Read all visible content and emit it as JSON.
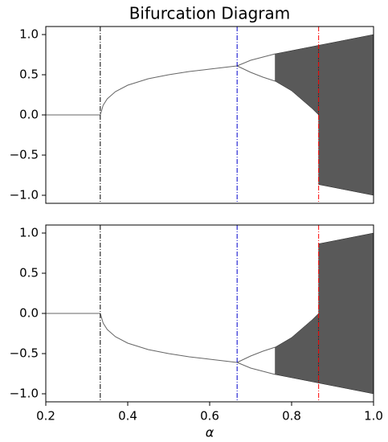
{
  "chart_data": [
    {
      "type": "line",
      "title": "Bifurcation Diagram",
      "xlim": [
        0.2,
        1.0
      ],
      "ylim": [
        -1.1,
        1.1
      ],
      "yticks": [
        {
          "value": -1.0,
          "label": "−1.0"
        },
        {
          "value": -0.5,
          "label": "−0.5"
        },
        {
          "value": 0.0,
          "label": "0.0"
        },
        {
          "value": 0.5,
          "label": "0.5"
        },
        {
          "value": 1.0,
          "label": "1.0"
        }
      ],
      "vlines": [
        {
          "x": 0.333,
          "color": "#000000"
        },
        {
          "x": 0.667,
          "color": "#0000cc"
        },
        {
          "x": 0.866,
          "color": "#ff0000"
        }
      ],
      "series": [
        {
          "color": "#666666",
          "x": [
            0.2,
            0.333,
            0.34,
            0.35,
            0.37,
            0.4,
            0.45,
            0.5,
            0.55,
            0.6,
            0.65,
            0.667
          ],
          "values": [
            0,
            0,
            0.12,
            0.2,
            0.29,
            0.37,
            0.45,
            0.5,
            0.54,
            0.57,
            0.6,
            0.61
          ]
        },
        {
          "color": "#666666",
          "x": [
            0.667,
            0.7,
            0.73,
            0.76
          ],
          "values": [
            0.61,
            0.68,
            0.72,
            0.76
          ]
        },
        {
          "color": "#666666",
          "x": [
            0.667,
            0.7,
            0.73,
            0.76
          ],
          "values": [
            0.61,
            0.53,
            0.47,
            0.42
          ]
        },
        {
          "color": "#222222",
          "fill": true,
          "x": [
            0.76,
            0.8,
            0.85,
            0.866
          ],
          "values": [
            0.76,
            0.8,
            0.85,
            0.866
          ],
          "lower": [
            0.42,
            0.3,
            0.08,
            0
          ]
        },
        {
          "color": "#222222",
          "fill": true,
          "x": [
            0.866,
            0.9,
            0.95,
            1.0
          ],
          "values": [
            0.866,
            0.9,
            0.95,
            1.0
          ],
          "lower": [
            -0.866,
            -0.9,
            -0.95,
            -1.0
          ]
        }
      ]
    },
    {
      "type": "line",
      "x_label": "α",
      "xlim": [
        0.2,
        1.0
      ],
      "ylim": [
        -1.1,
        1.1
      ],
      "xticks": [
        0.2,
        0.4,
        0.6,
        0.8,
        {
          "value": 1.0,
          "label": "1.0"
        }
      ],
      "yticks": [
        {
          "value": -1.0,
          "label": "−1.0"
        },
        {
          "value": -0.5,
          "label": "−0.5"
        },
        {
          "value": 0.0,
          "label": "0.0"
        },
        {
          "value": 0.5,
          "label": "0.5"
        },
        {
          "value": 1.0,
          "label": "1.0"
        }
      ],
      "vlines": [
        {
          "x": 0.333,
          "color": "#000000"
        },
        {
          "x": 0.667,
          "color": "#0000cc"
        },
        {
          "x": 0.866,
          "color": "#ff0000"
        }
      ],
      "series": [
        {
          "color": "#666666",
          "x": [
            0.2,
            0.333,
            0.34,
            0.35,
            0.37,
            0.4,
            0.45,
            0.5,
            0.55,
            0.6,
            0.65,
            0.667
          ],
          "values": [
            0,
            0,
            -0.12,
            -0.2,
            -0.29,
            -0.37,
            -0.45,
            -0.5,
            -0.54,
            -0.57,
            -0.6,
            -0.61
          ]
        },
        {
          "color": "#666666",
          "x": [
            0.667,
            0.7,
            0.73,
            0.76
          ],
          "values": [
            -0.61,
            -0.53,
            -0.47,
            -0.42
          ]
        },
        {
          "color": "#666666",
          "x": [
            0.667,
            0.7,
            0.73,
            0.76
          ],
          "values": [
            -0.61,
            -0.68,
            -0.72,
            -0.76
          ]
        },
        {
          "color": "#222222",
          "fill": true,
          "x": [
            0.76,
            0.8,
            0.85,
            0.866
          ],
          "values": [
            -0.42,
            -0.3,
            -0.08,
            0
          ],
          "lower": [
            -0.76,
            -0.8,
            -0.85,
            -0.866
          ]
        },
        {
          "color": "#222222",
          "fill": true,
          "x": [
            0.866,
            0.9,
            0.95,
            1.0
          ],
          "values": [
            0.866,
            0.9,
            0.95,
            1.0
          ],
          "lower": [
            -0.866,
            -0.9,
            -0.95,
            -1.0
          ]
        }
      ]
    }
  ]
}
